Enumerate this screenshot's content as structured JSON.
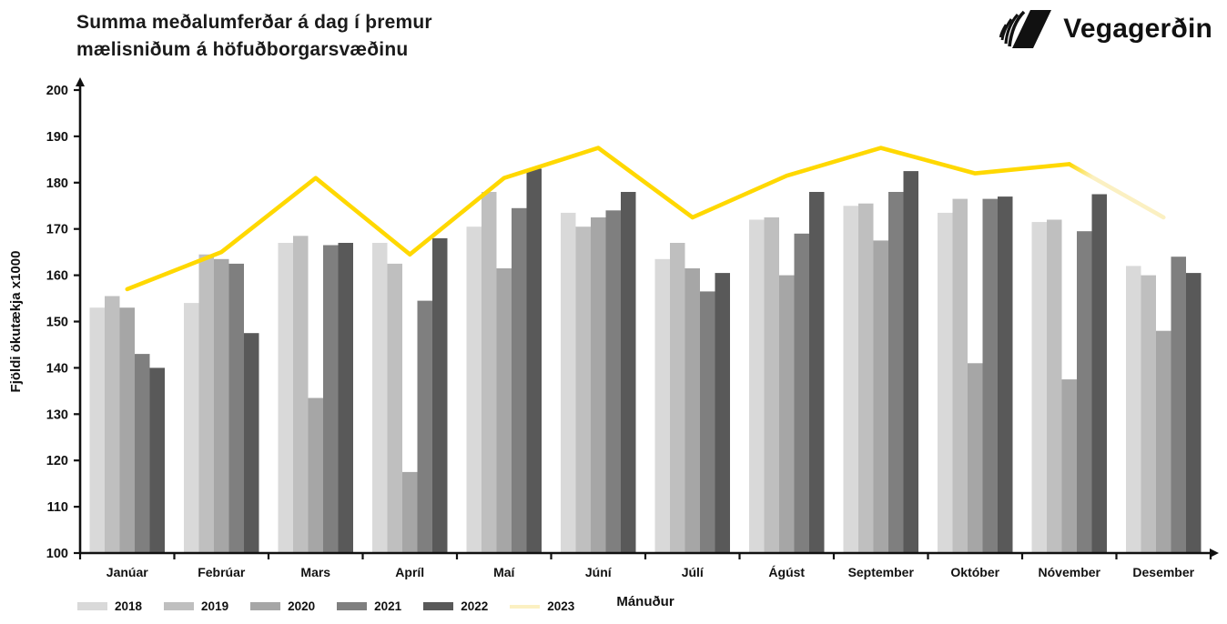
{
  "header": {
    "title": "Summa meðalumferðar á dag í þremur\nmælisniðum á höfuðborgarsvæðinu",
    "logo_text": "Vegagerðin"
  },
  "chart_data": {
    "type": "bar",
    "title": "Summa meðalumferðar á dag í þremur mælisniðum á höfuðborgarsvæðinu",
    "xlabel": "Mánuður",
    "ylabel": "Fjöldi ökutækja x1000",
    "ylim": [
      100,
      200
    ],
    "ytick_step": 10,
    "grid": false,
    "legend_position": "bottom-left",
    "categories": [
      "Janúar",
      "Febrúar",
      "Mars",
      "Apríl",
      "Maí",
      "Júní",
      "Júlí",
      "Ágúst",
      "September",
      "Október",
      "Nóvember",
      "Desember"
    ],
    "series": [
      {
        "name": "2018",
        "type": "bar",
        "color": "#d9d9d9",
        "values": [
          153,
          154,
          167,
          167,
          170.5,
          173.5,
          163.5,
          172,
          175,
          173.5,
          171.5,
          162
        ]
      },
      {
        "name": "2019",
        "type": "bar",
        "color": "#bfbfbf",
        "values": [
          155.5,
          164.5,
          168.5,
          162.5,
          178,
          170.5,
          167,
          172.5,
          175.5,
          176.5,
          172,
          160
        ]
      },
      {
        "name": "2020",
        "type": "bar",
        "color": "#a6a6a6",
        "values": [
          153,
          163.5,
          133.5,
          117.5,
          161.5,
          172.5,
          161.5,
          160,
          167.5,
          141,
          137.5,
          148
        ]
      },
      {
        "name": "2021",
        "type": "bar",
        "color": "#7f7f7f",
        "values": [
          143,
          162.5,
          166.5,
          154.5,
          174.5,
          174,
          156.5,
          169,
          178,
          176.5,
          169.5,
          164
        ]
      },
      {
        "name": "2022",
        "type": "bar",
        "color": "#595959",
        "values": [
          140,
          147.5,
          167,
          168,
          183,
          178,
          160.5,
          178,
          182.5,
          177,
          177.5,
          160.5
        ]
      },
      {
        "name": "2023",
        "type": "line",
        "color": "#ffd800",
        "fade_color": "#fbf0c2",
        "fade_last_segment": true,
        "values": [
          157,
          165,
          181,
          164.5,
          181,
          187.5,
          172.5,
          181.5,
          187.5,
          182,
          184,
          172.5
        ]
      }
    ]
  }
}
